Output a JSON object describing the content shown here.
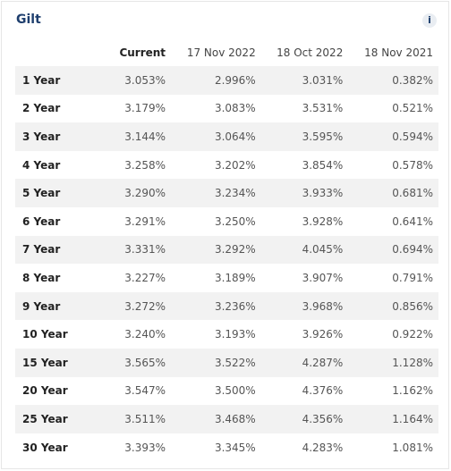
{
  "panel": {
    "title": "Gilt",
    "info_icon": "i"
  },
  "table": {
    "headers": [
      "",
      "Current",
      "17 Nov 2022",
      "18 Oct 2022",
      "18 Nov 2021"
    ],
    "rows": [
      {
        "label": "1 Year",
        "values": [
          "3.053%",
          "2.996%",
          "3.031%",
          "0.382%"
        ]
      },
      {
        "label": "2 Year",
        "values": [
          "3.179%",
          "3.083%",
          "3.531%",
          "0.521%"
        ]
      },
      {
        "label": "3 Year",
        "values": [
          "3.144%",
          "3.064%",
          "3.595%",
          "0.594%"
        ]
      },
      {
        "label": "4 Year",
        "values": [
          "3.258%",
          "3.202%",
          "3.854%",
          "0.578%"
        ]
      },
      {
        "label": "5 Year",
        "values": [
          "3.290%",
          "3.234%",
          "3.933%",
          "0.681%"
        ]
      },
      {
        "label": "6 Year",
        "values": [
          "3.291%",
          "3.250%",
          "3.928%",
          "0.641%"
        ]
      },
      {
        "label": "7 Year",
        "values": [
          "3.331%",
          "3.292%",
          "4.045%",
          "0.694%"
        ]
      },
      {
        "label": "8 Year",
        "values": [
          "3.227%",
          "3.189%",
          "3.907%",
          "0.791%"
        ]
      },
      {
        "label": "9 Year",
        "values": [
          "3.272%",
          "3.236%",
          "3.968%",
          "0.856%"
        ]
      },
      {
        "label": "10 Year",
        "values": [
          "3.240%",
          "3.193%",
          "3.926%",
          "0.922%"
        ]
      },
      {
        "label": "15 Year",
        "values": [
          "3.565%",
          "3.522%",
          "4.287%",
          "1.128%"
        ]
      },
      {
        "label": "20 Year",
        "values": [
          "3.547%",
          "3.500%",
          "4.376%",
          "1.162%"
        ]
      },
      {
        "label": "25 Year",
        "values": [
          "3.511%",
          "3.468%",
          "4.356%",
          "1.164%"
        ]
      },
      {
        "label": "30 Year",
        "values": [
          "3.393%",
          "3.345%",
          "4.283%",
          "1.081%"
        ]
      }
    ]
  }
}
